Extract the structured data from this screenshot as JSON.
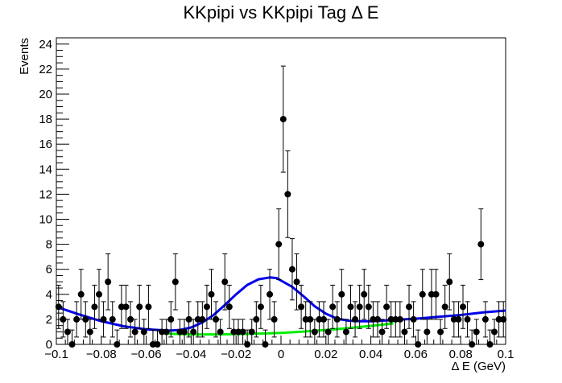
{
  "chart_data": {
    "type": "scatter",
    "title": "KKpipi vs KKpipi Tag Δ E",
    "xlabel": "Δ E (GeV)",
    "ylabel": "Events",
    "xlim": [
      -0.1,
      0.1
    ],
    "ylim": [
      0,
      24.5
    ],
    "x_ticks": [
      -0.1,
      -0.08,
      -0.06,
      -0.04,
      -0.02,
      0,
      0.02,
      0.04,
      0.06,
      0.08,
      0.1
    ],
    "x_tick_labels": [
      "−0.1",
      "−0.08",
      "−0.06",
      "−0.04",
      "−0.02",
      "0",
      "0.02",
      "0.04",
      "0.06",
      "0.08",
      "0.1"
    ],
    "y_ticks": [
      0,
      2,
      4,
      6,
      8,
      10,
      12,
      14,
      16,
      18,
      20,
      22,
      24
    ],
    "y_tick_labels": [
      "0",
      "2",
      "4",
      "6",
      "8",
      "10",
      "12",
      "14",
      "16",
      "18",
      "20",
      "22",
      "24"
    ],
    "grid": false,
    "series": [
      {
        "kind": "points_with_errors",
        "color": "#000000",
        "x": [
          -0.099,
          -0.097,
          -0.095,
          -0.093,
          -0.091,
          -0.089,
          -0.087,
          -0.085,
          -0.083,
          -0.081,
          -0.079,
          -0.077,
          -0.075,
          -0.073,
          -0.071,
          -0.069,
          -0.067,
          -0.065,
          -0.063,
          -0.061,
          -0.059,
          -0.057,
          -0.055,
          -0.053,
          -0.051,
          -0.049,
          -0.047,
          -0.045,
          -0.043,
          -0.041,
          -0.039,
          -0.037,
          -0.035,
          -0.033,
          -0.031,
          -0.029,
          -0.027,
          -0.025,
          -0.023,
          -0.021,
          -0.019,
          -0.017,
          -0.015,
          -0.013,
          -0.011,
          -0.009,
          -0.007,
          -0.005,
          -0.003,
          -0.001,
          0.001,
          0.003,
          0.005,
          0.007,
          0.009,
          0.011,
          0.013,
          0.015,
          0.017,
          0.019,
          0.021,
          0.023,
          0.025,
          0.027,
          0.029,
          0.031,
          0.033,
          0.035,
          0.037,
          0.039,
          0.041,
          0.043,
          0.045,
          0.047,
          0.049,
          0.051,
          0.053,
          0.055,
          0.057,
          0.059,
          0.061,
          0.063,
          0.065,
          0.067,
          0.069,
          0.071,
          0.073,
          0.075,
          0.077,
          0.079,
          0.081,
          0.083,
          0.085,
          0.087,
          0.089,
          0.091,
          0.093,
          0.095,
          0.097,
          0.099
        ],
        "y": [
          3,
          2,
          1,
          0,
          2,
          4,
          2,
          1,
          3,
          4,
          2,
          5,
          2,
          0,
          3,
          3,
          2,
          1,
          3,
          1,
          3,
          0,
          0,
          1,
          1,
          2,
          5,
          1,
          1,
          2,
          1,
          2,
          2,
          3,
          4,
          2,
          1,
          5,
          3,
          1,
          1,
          1,
          0,
          1,
          2,
          3,
          0,
          4,
          2,
          8,
          18,
          12,
          6,
          5,
          3,
          2,
          2,
          1,
          2,
          2,
          1,
          3,
          2,
          4,
          1,
          3,
          2,
          3,
          4,
          3,
          2,
          2,
          1,
          3,
          2,
          2,
          2,
          1,
          3,
          2,
          0,
          4,
          1,
          4,
          4,
          1,
          3,
          5,
          2,
          2,
          3,
          2,
          0,
          1,
          8,
          2,
          0,
          1,
          2,
          2
        ]
      },
      {
        "kind": "curve",
        "name": "",
        "color": "#0000ee",
        "x": [
          -0.1,
          -0.09,
          -0.08,
          -0.07,
          -0.06,
          -0.05,
          -0.045,
          -0.04,
          -0.035,
          -0.03,
          -0.025,
          -0.02,
          -0.015,
          -0.01,
          -0.005,
          -0.002,
          0.0,
          0.005,
          0.01,
          0.015,
          0.02,
          0.025,
          0.03,
          0.035,
          0.04,
          0.045,
          0.05,
          0.055,
          0.06,
          0.07,
          0.08,
          0.09,
          0.1
        ],
        "y": [
          3.0,
          2.4,
          1.85,
          1.45,
          1.2,
          1.1,
          1.15,
          1.35,
          1.75,
          2.35,
          3.15,
          4.0,
          4.75,
          5.2,
          5.35,
          5.3,
          5.1,
          4.6,
          3.85,
          3.05,
          2.45,
          2.05,
          1.9,
          1.85,
          1.85,
          1.9,
          1.95,
          2.0,
          2.05,
          2.2,
          2.35,
          2.55,
          2.7
        ]
      },
      {
        "kind": "curve",
        "name": "",
        "color": "#00ee00",
        "x": [
          -0.05,
          -0.04,
          -0.03,
          -0.02,
          -0.01,
          0.0,
          0.01,
          0.02,
          0.03,
          0.04,
          0.05
        ],
        "y": [
          0.85,
          0.8,
          0.8,
          0.82,
          0.86,
          0.92,
          1.02,
          1.15,
          1.3,
          1.48,
          1.67
        ]
      }
    ]
  }
}
